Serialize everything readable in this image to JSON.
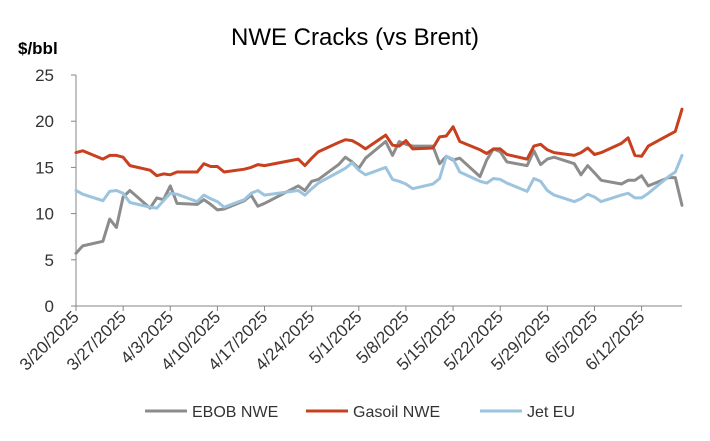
{
  "chart_data": {
    "type": "line",
    "title": "NWE Cracks (vs Brent)",
    "ylabel": "$/bbl",
    "xlabel": "",
    "ylim": [
      0,
      25
    ],
    "yticks": [
      "0",
      "5",
      "10",
      "15",
      "20",
      "25"
    ],
    "xlim": [
      "3/20/2025",
      "6/18/2025"
    ],
    "xticks": [
      "3/20/2025",
      "3/27/2025",
      "4/3/2025",
      "4/10/2025",
      "4/17/2025",
      "4/24/2025",
      "5/1/2025",
      "5/8/2025",
      "5/15/2025",
      "5/22/2025",
      "5/29/2025",
      "6/5/2025",
      "6/12/2025"
    ],
    "grid": false,
    "legend_position": "bottom",
    "series": [
      {
        "name": "EBOB NWE",
        "color": "#8c8c8c",
        "points": [
          [
            "3/20/2025",
            5.7
          ],
          [
            "3/21/2025",
            6.5
          ],
          [
            "3/24/2025",
            7.0
          ],
          [
            "3/25/2025",
            9.4
          ],
          [
            "3/26/2025",
            8.5
          ],
          [
            "3/27/2025",
            11.8
          ],
          [
            "3/28/2025",
            12.5
          ],
          [
            "3/31/2025",
            10.6
          ],
          [
            "4/1/2025",
            11.7
          ],
          [
            "4/2/2025",
            11.5
          ],
          [
            "4/3/2025",
            13.0
          ],
          [
            "4/4/2025",
            11.1
          ],
          [
            "4/7/2025",
            11.0
          ],
          [
            "4/8/2025",
            11.5
          ],
          [
            "4/9/2025",
            11.0
          ],
          [
            "4/10/2025",
            10.4
          ],
          [
            "4/11/2025",
            10.5
          ],
          [
            "4/14/2025",
            11.4
          ],
          [
            "4/15/2025",
            12.0
          ],
          [
            "4/16/2025",
            10.8
          ],
          [
            "4/17/2025",
            11.1
          ],
          [
            "4/22/2025",
            13.0
          ],
          [
            "4/23/2025",
            12.5
          ],
          [
            "4/24/2025",
            13.5
          ],
          [
            "4/25/2025",
            13.7
          ],
          [
            "4/28/2025",
            15.3
          ],
          [
            "4/29/2025",
            16.1
          ],
          [
            "4/30/2025",
            15.6
          ],
          [
            "5/1/2025",
            14.9
          ],
          [
            "5/2/2025",
            16.0
          ],
          [
            "5/5/2025",
            17.8
          ],
          [
            "5/6/2025",
            16.3
          ],
          [
            "5/7/2025",
            17.8
          ],
          [
            "5/8/2025",
            17.5
          ],
          [
            "5/9/2025",
            17.3
          ],
          [
            "5/12/2025",
            17.3
          ],
          [
            "5/13/2025",
            15.4
          ],
          [
            "5/14/2025",
            16.2
          ],
          [
            "5/15/2025",
            15.8
          ],
          [
            "5/16/2025",
            16.0
          ],
          [
            "5/19/2025",
            14.0
          ],
          [
            "5/20/2025",
            15.8
          ],
          [
            "5/21/2025",
            17.0
          ],
          [
            "5/22/2025",
            16.7
          ],
          [
            "5/23/2025",
            15.6
          ],
          [
            "5/26/2025",
            15.2
          ],
          [
            "5/27/2025",
            16.8
          ],
          [
            "5/28/2025",
            15.3
          ],
          [
            "5/29/2025",
            15.9
          ],
          [
            "5/30/2025",
            16.1
          ],
          [
            "6/2/2025",
            15.4
          ],
          [
            "6/3/2025",
            14.2
          ],
          [
            "6/4/2025",
            15.2
          ],
          [
            "6/5/2025",
            14.4
          ],
          [
            "6/6/2025",
            13.6
          ],
          [
            "6/9/2025",
            13.2
          ],
          [
            "6/10/2025",
            13.6
          ],
          [
            "6/11/2025",
            13.6
          ],
          [
            "6/12/2025",
            14.1
          ],
          [
            "6/13/2025",
            13.0
          ],
          [
            "6/16/2025",
            13.9
          ],
          [
            "6/17/2025",
            13.9
          ],
          [
            "6/18/2025",
            10.9
          ]
        ]
      },
      {
        "name": "Gasoil NWE",
        "color": "#c8401e",
        "points": [
          [
            "3/20/2025",
            16.6
          ],
          [
            "3/21/2025",
            16.8
          ],
          [
            "3/24/2025",
            15.9
          ],
          [
            "3/25/2025",
            16.3
          ],
          [
            "3/26/2025",
            16.3
          ],
          [
            "3/27/2025",
            16.1
          ],
          [
            "3/28/2025",
            15.2
          ],
          [
            "3/31/2025",
            14.7
          ],
          [
            "4/1/2025",
            14.1
          ],
          [
            "4/2/2025",
            14.3
          ],
          [
            "4/3/2025",
            14.2
          ],
          [
            "4/4/2025",
            14.5
          ],
          [
            "4/7/2025",
            14.5
          ],
          [
            "4/8/2025",
            15.4
          ],
          [
            "4/9/2025",
            15.1
          ],
          [
            "4/10/2025",
            15.1
          ],
          [
            "4/11/2025",
            14.5
          ],
          [
            "4/14/2025",
            14.8
          ],
          [
            "4/15/2025",
            15.0
          ],
          [
            "4/16/2025",
            15.3
          ],
          [
            "4/17/2025",
            15.2
          ],
          [
            "4/22/2025",
            15.9
          ],
          [
            "4/23/2025",
            15.2
          ],
          [
            "4/24/2025",
            16.0
          ],
          [
            "4/25/2025",
            16.7
          ],
          [
            "4/28/2025",
            17.7
          ],
          [
            "4/29/2025",
            18.0
          ],
          [
            "4/30/2025",
            17.9
          ],
          [
            "5/1/2025",
            17.5
          ],
          [
            "5/2/2025",
            17.0
          ],
          [
            "5/5/2025",
            18.5
          ],
          [
            "5/6/2025",
            17.4
          ],
          [
            "5/7/2025",
            17.3
          ],
          [
            "5/8/2025",
            17.9
          ],
          [
            "5/9/2025",
            17.0
          ],
          [
            "5/12/2025",
            17.1
          ],
          [
            "5/13/2025",
            18.3
          ],
          [
            "5/14/2025",
            18.4
          ],
          [
            "5/15/2025",
            19.4
          ],
          [
            "5/16/2025",
            17.8
          ],
          [
            "5/19/2025",
            16.9
          ],
          [
            "5/20/2025",
            16.5
          ],
          [
            "5/21/2025",
            17.0
          ],
          [
            "5/22/2025",
            17.0
          ],
          [
            "5/23/2025",
            16.4
          ],
          [
            "5/26/2025",
            15.9
          ],
          [
            "5/27/2025",
            17.3
          ],
          [
            "5/28/2025",
            17.5
          ],
          [
            "5/29/2025",
            16.9
          ],
          [
            "5/30/2025",
            16.6
          ],
          [
            "6/2/2025",
            16.3
          ],
          [
            "6/3/2025",
            16.6
          ],
          [
            "6/4/2025",
            17.1
          ],
          [
            "6/5/2025",
            16.4
          ],
          [
            "6/6/2025",
            16.6
          ],
          [
            "6/9/2025",
            17.6
          ],
          [
            "6/10/2025",
            18.2
          ],
          [
            "6/11/2025",
            16.3
          ],
          [
            "6/12/2025",
            16.2
          ],
          [
            "6/13/2025",
            17.3
          ],
          [
            "6/16/2025",
            18.5
          ],
          [
            "6/17/2025",
            18.9
          ],
          [
            "6/18/2025",
            21.3
          ]
        ]
      },
      {
        "name": "Jet EU",
        "color": "#9cc4de",
        "points": [
          [
            "3/20/2025",
            12.5
          ],
          [
            "3/21/2025",
            12.1
          ],
          [
            "3/24/2025",
            11.4
          ],
          [
            "3/25/2025",
            12.4
          ],
          [
            "3/26/2025",
            12.5
          ],
          [
            "3/27/2025",
            12.2
          ],
          [
            "3/28/2025",
            11.2
          ],
          [
            "3/31/2025",
            10.7
          ],
          [
            "4/1/2025",
            10.6
          ],
          [
            "4/2/2025",
            11.4
          ],
          [
            "4/3/2025",
            12.2
          ],
          [
            "4/4/2025",
            12.1
          ],
          [
            "4/7/2025",
            11.3
          ],
          [
            "4/8/2025",
            12.0
          ],
          [
            "4/9/2025",
            11.6
          ],
          [
            "4/10/2025",
            11.3
          ],
          [
            "4/11/2025",
            10.7
          ],
          [
            "4/14/2025",
            11.5
          ],
          [
            "4/15/2025",
            12.2
          ],
          [
            "4/16/2025",
            12.5
          ],
          [
            "4/17/2025",
            12.0
          ],
          [
            "4/22/2025",
            12.5
          ],
          [
            "4/23/2025",
            12.0
          ],
          [
            "4/24/2025",
            12.7
          ],
          [
            "4/25/2025",
            13.3
          ],
          [
            "4/28/2025",
            14.5
          ],
          [
            "4/29/2025",
            14.9
          ],
          [
            "4/30/2025",
            15.5
          ],
          [
            "5/1/2025",
            14.7
          ],
          [
            "5/2/2025",
            14.2
          ],
          [
            "5/5/2025",
            15.0
          ],
          [
            "5/6/2025",
            13.7
          ],
          [
            "5/7/2025",
            13.5
          ],
          [
            "5/8/2025",
            13.2
          ],
          [
            "5/9/2025",
            12.7
          ],
          [
            "5/12/2025",
            13.2
          ],
          [
            "5/13/2025",
            13.8
          ],
          [
            "5/14/2025",
            16.2
          ],
          [
            "5/15/2025",
            15.9
          ],
          [
            "5/16/2025",
            14.5
          ],
          [
            "5/19/2025",
            13.5
          ],
          [
            "5/20/2025",
            13.3
          ],
          [
            "5/21/2025",
            13.8
          ],
          [
            "5/22/2025",
            13.7
          ],
          [
            "5/23/2025",
            13.3
          ],
          [
            "5/26/2025",
            12.4
          ],
          [
            "5/27/2025",
            13.8
          ],
          [
            "5/28/2025",
            13.5
          ],
          [
            "5/29/2025",
            12.5
          ],
          [
            "5/30/2025",
            12.0
          ],
          [
            "6/2/2025",
            11.3
          ],
          [
            "6/3/2025",
            11.6
          ],
          [
            "6/4/2025",
            12.1
          ],
          [
            "6/5/2025",
            11.8
          ],
          [
            "6/6/2025",
            11.3
          ],
          [
            "6/9/2025",
            12.0
          ],
          [
            "6/10/2025",
            12.2
          ],
          [
            "6/11/2025",
            11.7
          ],
          [
            "6/12/2025",
            11.7
          ],
          [
            "6/13/2025",
            12.2
          ],
          [
            "6/16/2025",
            14.0
          ],
          [
            "6/17/2025",
            14.5
          ],
          [
            "6/18/2025",
            16.3
          ]
        ]
      }
    ]
  }
}
